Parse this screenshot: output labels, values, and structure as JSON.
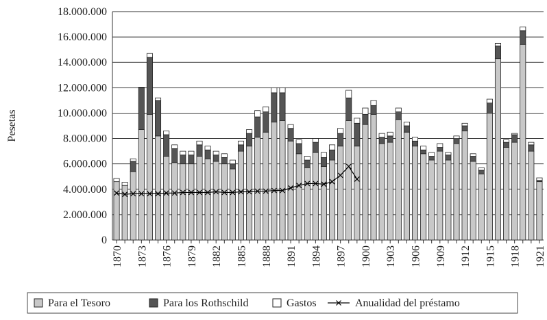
{
  "chart_data": {
    "type": "bar",
    "stacked": true,
    "y_label": "Pesetas",
    "grid": true,
    "categories": [
      "1870",
      null,
      null,
      "1873",
      null,
      null,
      "1876",
      null,
      null,
      "1879",
      null,
      null,
      "1882",
      null,
      null,
      "1885",
      null,
      null,
      "1888",
      null,
      null,
      "1891",
      null,
      null,
      "1894",
      null,
      null,
      "1897",
      null,
      null,
      "1900",
      null,
      null,
      "1903",
      null,
      null,
      "1906",
      null,
      null,
      "1909",
      null,
      null,
      "1912",
      null,
      null,
      "1915",
      null,
      null,
      "1918",
      null,
      null,
      "1921"
    ],
    "ylim": [
      0,
      18000000
    ],
    "yticks": [
      0,
      {
        "value": 2000000,
        "label": "2.000.000"
      },
      {
        "value": 4000000,
        "label": "4.000.000"
      },
      {
        "value": 6000000,
        "label": "6.000.000"
      },
      {
        "value": 8000000,
        "label": "8.000.000"
      },
      {
        "value": 10000000,
        "label": "10.000.000"
      },
      {
        "value": 12000000,
        "label": "12.000.000"
      },
      {
        "value": 14000000,
        "label": "14.000.000"
      },
      {
        "value": 16000000,
        "label": "16.000.000"
      },
      {
        "value": 18000000,
        "label": "18.000.000"
      }
    ],
    "series": [
      {
        "name": "Para el Tesoro",
        "type": "bar",
        "color": "#c8c8c8",
        "values": [
          4600000,
          4300000,
          5400000,
          8700000,
          9900000,
          8200000,
          6600000,
          6100000,
          6000000,
          6000000,
          6600000,
          6400000,
          6200000,
          6000000,
          5600000,
          7000000,
          7400000,
          8100000,
          8500000,
          9300000,
          9400000,
          7800000,
          6800000,
          5700000,
          6900000,
          5800000,
          6300000,
          7400000,
          9400000,
          7400000,
          9100000,
          9900000,
          7600000,
          7700000,
          9500000,
          8500000,
          7400000,
          6800000,
          6300000,
          7000000,
          6300000,
          7600000,
          8600000,
          6200000,
          5200000,
          10000000,
          14300000,
          7300000,
          7700000,
          15400000,
          7000000,
          4600000
        ]
      },
      {
        "name": "Para los Rothschild",
        "type": "bar",
        "color": "#555555",
        "values": [
          0,
          0,
          800000,
          3300000,
          4500000,
          2800000,
          1700000,
          1100000,
          700000,
          700000,
          900000,
          700000,
          500000,
          500000,
          400000,
          500000,
          1000000,
          1600000,
          1600000,
          2300000,
          2200000,
          1000000,
          800000,
          600000,
          800000,
          700000,
          800000,
          1000000,
          1800000,
          1800000,
          800000,
          700000,
          500000,
          500000,
          600000,
          500000,
          400000,
          300000,
          300000,
          300000,
          400000,
          400000,
          400000,
          400000,
          300000,
          800000,
          1000000,
          400000,
          600000,
          1100000,
          500000,
          100000
        ]
      },
      {
        "name": "Gastos",
        "type": "bar",
        "color": "#ffffff",
        "values": [
          250000,
          250000,
          200000,
          50000,
          300000,
          200000,
          300000,
          300000,
          300000,
          300000,
          300000,
          300000,
          300000,
          300000,
          300000,
          300000,
          300000,
          500000,
          400000,
          400000,
          400000,
          300000,
          300000,
          300000,
          300000,
          400000,
          400000,
          400000,
          600000,
          400000,
          500000,
          400000,
          300000,
          300000,
          300000,
          300000,
          300000,
          300000,
          300000,
          300000,
          200000,
          200000,
          200000,
          200000,
          200000,
          300000,
          200000,
          200000,
          100000,
          300000,
          200000,
          200000
        ]
      },
      {
        "name": "Anualidad del préstamo",
        "type": "line",
        "color": "#000000",
        "values": [
          3700000,
          3600000,
          3650000,
          3650000,
          3650000,
          3650000,
          3700000,
          3700000,
          3750000,
          3750000,
          3750000,
          3750000,
          3800000,
          3750000,
          3750000,
          3800000,
          3800000,
          3850000,
          3850000,
          3900000,
          3900000,
          4100000,
          4300000,
          4450000,
          4450000,
          4400000,
          4600000,
          5100000,
          5800000,
          4800000,
          null,
          null,
          null,
          null,
          null,
          null,
          null,
          null,
          null,
          null,
          null,
          null,
          null,
          null,
          null,
          null,
          null,
          null,
          null,
          null,
          null,
          null
        ]
      }
    ]
  }
}
